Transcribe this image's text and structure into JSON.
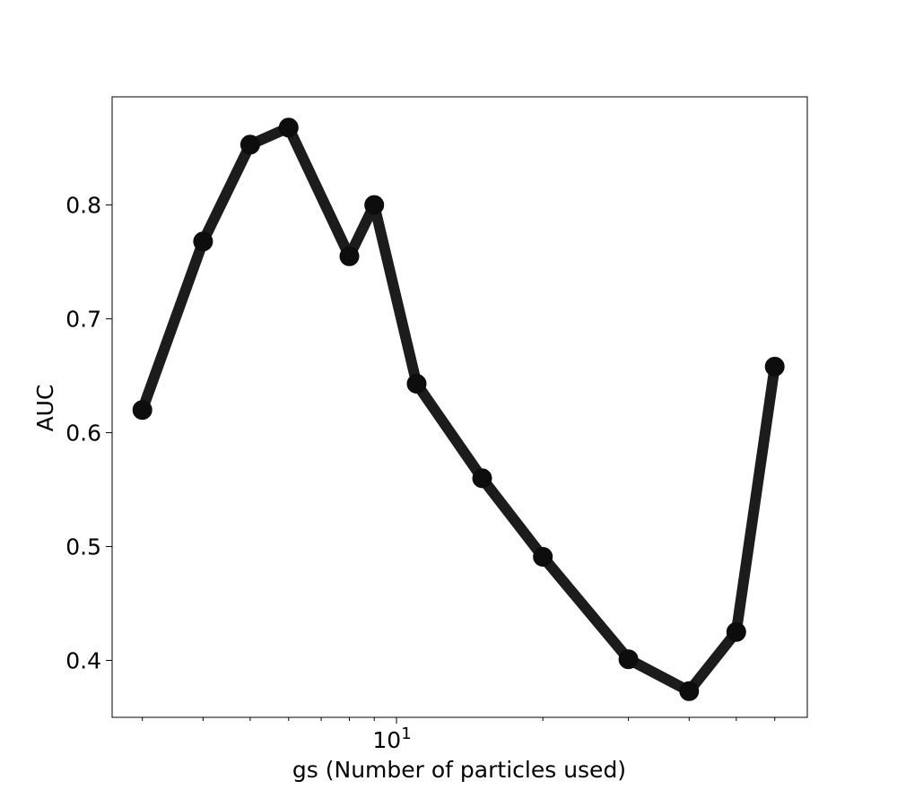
{
  "chart_data": {
    "type": "line",
    "title": "",
    "xlabel": "gs (Number of particles used)",
    "ylabel": "AUC",
    "xscale": "log",
    "xlim": [
      2.6,
      70
    ],
    "ylim": [
      0.35,
      0.895
    ],
    "x_tick_labels": [
      {
        "value": 10,
        "base": "10",
        "exp": "1"
      }
    ],
    "y_ticks": [
      0.4,
      0.5,
      0.6,
      0.7,
      0.8
    ],
    "y_tick_labels": [
      "0.4",
      "0.5",
      "0.6",
      "0.7",
      "0.8"
    ],
    "grid": false,
    "legend": "none",
    "series": [
      {
        "color": "#1c1c1c",
        "x": [
          3,
          4,
          5,
          6,
          8,
          9,
          11,
          15,
          20,
          30,
          40,
          50,
          60,
          70
        ],
        "y": [
          0.62,
          0.768,
          0.853,
          0.868,
          0.755,
          0.8,
          0.643,
          0.56,
          0.491,
          0.401,
          0.373,
          0.425,
          0.658,
          0.658
        ]
      }
    ]
  }
}
